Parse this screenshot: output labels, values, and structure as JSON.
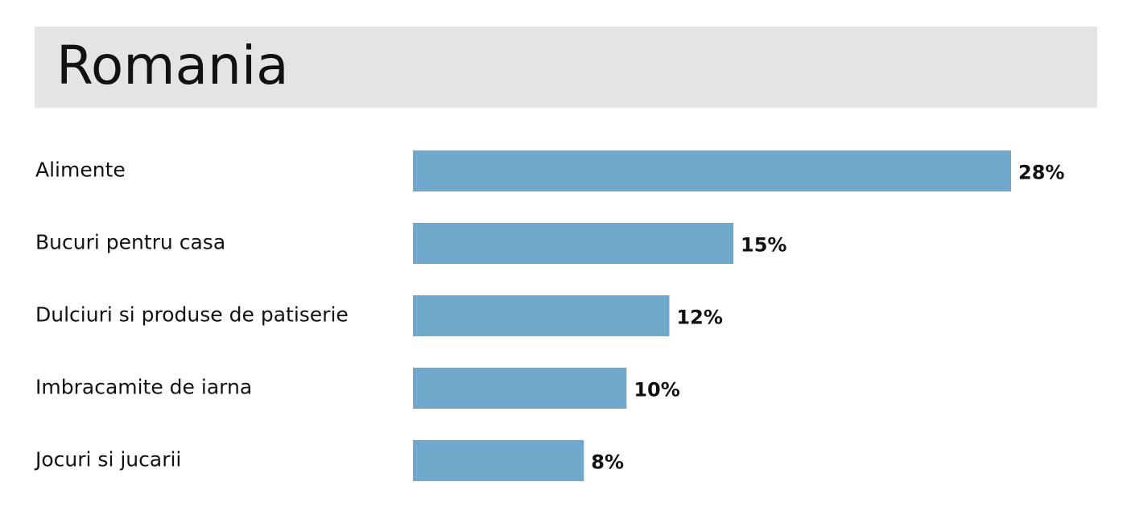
{
  "chart_data": {
    "type": "bar",
    "orientation": "horizontal",
    "title": "Romania",
    "categories": [
      "Alimente",
      "Bucuri pentru casa",
      "Dulciuri si produse de patiserie",
      "Imbracamite de iarna",
      "Jocuri si jucarii"
    ],
    "values": [
      28,
      15,
      12,
      10,
      8
    ],
    "value_labels": [
      "28%",
      "15%",
      "12%",
      "10%",
      "8%"
    ],
    "color": "#6fa8cb"
  }
}
